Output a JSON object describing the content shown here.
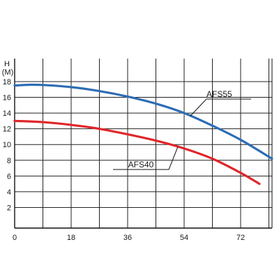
{
  "chart_data": {
    "type": "line",
    "title": "",
    "xlabel": "",
    "ylabel": "H",
    "ylabel_unit": "(M)",
    "xlim": [
      0,
      82
    ],
    "ylim": [
      0,
      20
    ],
    "x_ticks": [
      0,
      18,
      36,
      54,
      72
    ],
    "y_ticks": [
      2,
      4,
      6,
      8,
      10,
      12,
      14,
      16,
      18
    ],
    "x_grid_step": 9,
    "grid": true,
    "series": [
      {
        "name": "AFS55",
        "color": "#2e6db4",
        "x": [
          0,
          5,
          10,
          18,
          27,
          36,
          45,
          54,
          63,
          72,
          82
        ],
        "y": [
          17.5,
          17.6,
          17.55,
          17.3,
          16.8,
          16.1,
          15.2,
          14.0,
          12.4,
          10.6,
          8.2
        ]
      },
      {
        "name": "AFS40",
        "color": "#e0262a",
        "x": [
          0,
          9,
          18,
          27,
          36,
          45,
          54,
          63,
          72,
          78
        ],
        "y": [
          13.0,
          12.85,
          12.5,
          12.0,
          11.3,
          10.5,
          9.5,
          8.2,
          6.4,
          5.0
        ]
      }
    ],
    "annotations": [
      {
        "text": "AFS55",
        "series": 0,
        "at_x": 56
      },
      {
        "text": "AFS40",
        "series": 1,
        "at_x": 52
      }
    ]
  }
}
